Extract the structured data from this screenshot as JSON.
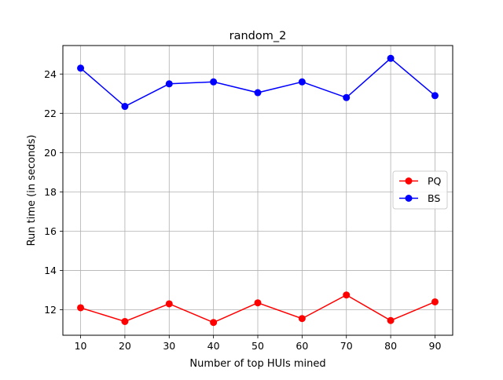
{
  "chart_data": {
    "type": "line",
    "title": "random_2",
    "xlabel": "Number of top HUIs mined",
    "ylabel": "Run time (in seconds)",
    "x": [
      10,
      20,
      30,
      40,
      50,
      60,
      70,
      80,
      90
    ],
    "xticks": [
      "10",
      "20",
      "30",
      "40",
      "50",
      "60",
      "70",
      "80",
      "90"
    ],
    "yticks": [
      "12",
      "14",
      "16",
      "18",
      "20",
      "22",
      "24"
    ],
    "xlim": [
      6,
      94
    ],
    "ylim": [
      10.7,
      25.45
    ],
    "grid": true,
    "legend_position": "center-right",
    "series": [
      {
        "name": "PQ",
        "color": "#ff0000",
        "values": [
          12.1,
          11.4,
          12.3,
          11.35,
          12.35,
          11.55,
          12.75,
          11.45,
          12.4
        ]
      },
      {
        "name": "BS",
        "color": "#0000ff",
        "values": [
          24.3,
          22.35,
          23.5,
          23.6,
          23.05,
          23.6,
          22.8,
          24.8,
          22.9
        ]
      }
    ]
  }
}
